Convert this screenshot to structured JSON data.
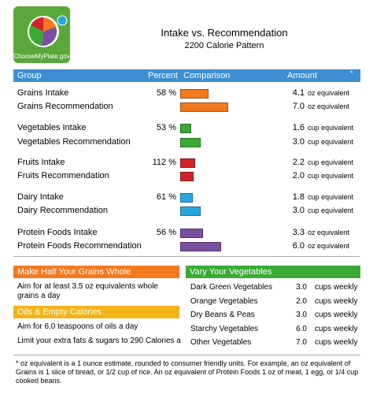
{
  "header": {
    "logo": "ChooseMyPlate.gov",
    "title": "Intake vs. Recommendation",
    "subtitle": "2200 Calorie Pattern"
  },
  "table": {
    "columns": [
      "Group",
      "Percent",
      "Comparison",
      "Amount"
    ],
    "note": "*",
    "groups": [
      {
        "color": "#f47a20",
        "rows": [
          {
            "label": "Grains Intake",
            "percent": "58 %",
            "amount": 4.1,
            "amount_label": "4.1",
            "unit": "oz equivalent"
          },
          {
            "label": "Grains Recommendation",
            "amount": 7,
            "amount_label": "7.0",
            "unit": "oz equivalent"
          }
        ]
      },
      {
        "color": "#3aaa35",
        "rows": [
          {
            "label": "Vegetables Intake",
            "percent": "53 %",
            "amount": 1.6,
            "amount_label": "1.6",
            "unit": "cup equivalent"
          },
          {
            "label": "Vegetables Recommendation",
            "amount": 3,
            "amount_label": "3.0",
            "unit": "cup equivalent"
          }
        ]
      },
      {
        "color": "#d3222a",
        "rows": [
          {
            "label": "Fruits Intake",
            "percent": "112 %",
            "amount": 2.2,
            "amount_label": "2.2",
            "unit": "cup equivalent"
          },
          {
            "label": "Fruits Recommendation",
            "amount": 2,
            "amount_label": "2.0",
            "unit": "cup equivalent"
          }
        ]
      },
      {
        "color": "#29a8e0",
        "rows": [
          {
            "label": "Dairy Intake",
            "percent": "61 %",
            "amount": 1.8,
            "amount_label": "1.8",
            "unit": "cup equivalent"
          },
          {
            "label": "Dairy Recommendation",
            "amount": 3,
            "amount_label": "3.0",
            "unit": "cup equivalent"
          }
        ]
      },
      {
        "color": "#7b4fa0",
        "rows": [
          {
            "label": "Protein Foods Intake",
            "percent": "56 %",
            "amount": 3.3,
            "amount_label": "3.3",
            "unit": "oz equivalent"
          },
          {
            "label": "Protein Foods Recommendation",
            "amount": 6,
            "amount_label": "6.0",
            "unit": "oz equivalent"
          }
        ]
      }
    ]
  },
  "grains_box": {
    "title": "Make Half Your Grains Whole",
    "text": "Aim for at least 3.5 oz equivalents whole grains a day"
  },
  "oils_box": {
    "title": "Oils & Empty Calories",
    "lines": [
      "Aim for 6.0 teaspoons of oils a day",
      "Limit your extra fats & sugars to 290 Calories a"
    ]
  },
  "vegetables_box": {
    "title": "Vary Your Vegetables",
    "rows": [
      {
        "name": "Dark Green Vegetables",
        "amount": "3.0",
        "unit": "cups weekly"
      },
      {
        "name": "Orange Vegetables",
        "amount": "2.0",
        "unit": "cups weekly"
      },
      {
        "name": "Dry Beans & Peas",
        "amount": "3.0",
        "unit": "cups weekly"
      },
      {
        "name": "Starchy Vegetables",
        "amount": "6.0",
        "unit": "cups weekly"
      },
      {
        "name": "Other Vegetables",
        "amount": "7.0",
        "unit": "cups weekly"
      }
    ]
  },
  "footnote": "* oz equivalent is a 1 ounce estimate, rounded to consumer friendly units. For example, an oz equivalent of Grains is 1 slice of bread, or 1/2 cup of rice. An oz equivalent of Protein Foods 1 oz of meat, 1 egg, or 1/4 cup cooked beans."
}
